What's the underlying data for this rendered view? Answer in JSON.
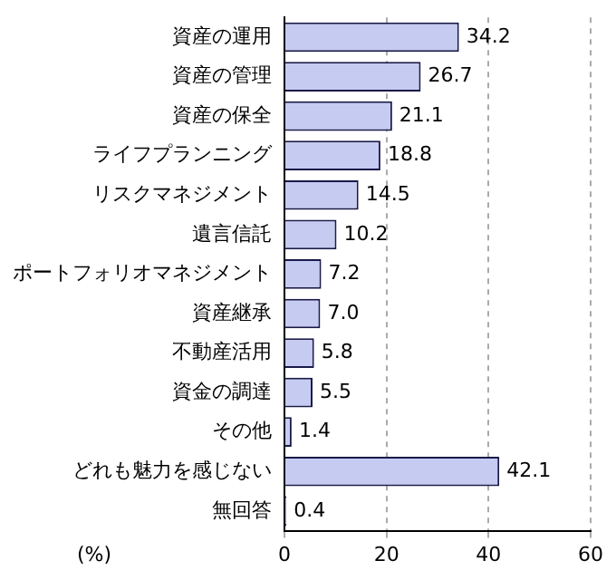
{
  "chart_data": {
    "type": "bar",
    "orientation": "horizontal",
    "xlabel": "(%)",
    "categories": [
      "資産の運用",
      "資産の管理",
      "資産の保全",
      "ライフプランニング",
      "リスクマネジメント",
      "遺言信託",
      "ポートフォリオマネジメント",
      "資産継承",
      "不動産活用",
      "資金の調達",
      "その他",
      "どれも魅力を感じない",
      "無回答"
    ],
    "values": [
      34.2,
      26.7,
      21.1,
      18.8,
      14.5,
      10.2,
      7.2,
      7.0,
      5.8,
      5.5,
      1.4,
      42.1,
      0.4
    ],
    "color": "#c6cbf2",
    "value_labels": [
      "34.2",
      "26.7",
      "21.1",
      "18.8",
      "14.5",
      "10.2",
      "7.2",
      "7.0",
      "5.8",
      "5.5",
      "1.4",
      "42.1",
      "0.4"
    ],
    "xlim": [
      0,
      60
    ],
    "xticks": [
      0,
      20,
      40,
      60
    ],
    "grid": "x"
  }
}
